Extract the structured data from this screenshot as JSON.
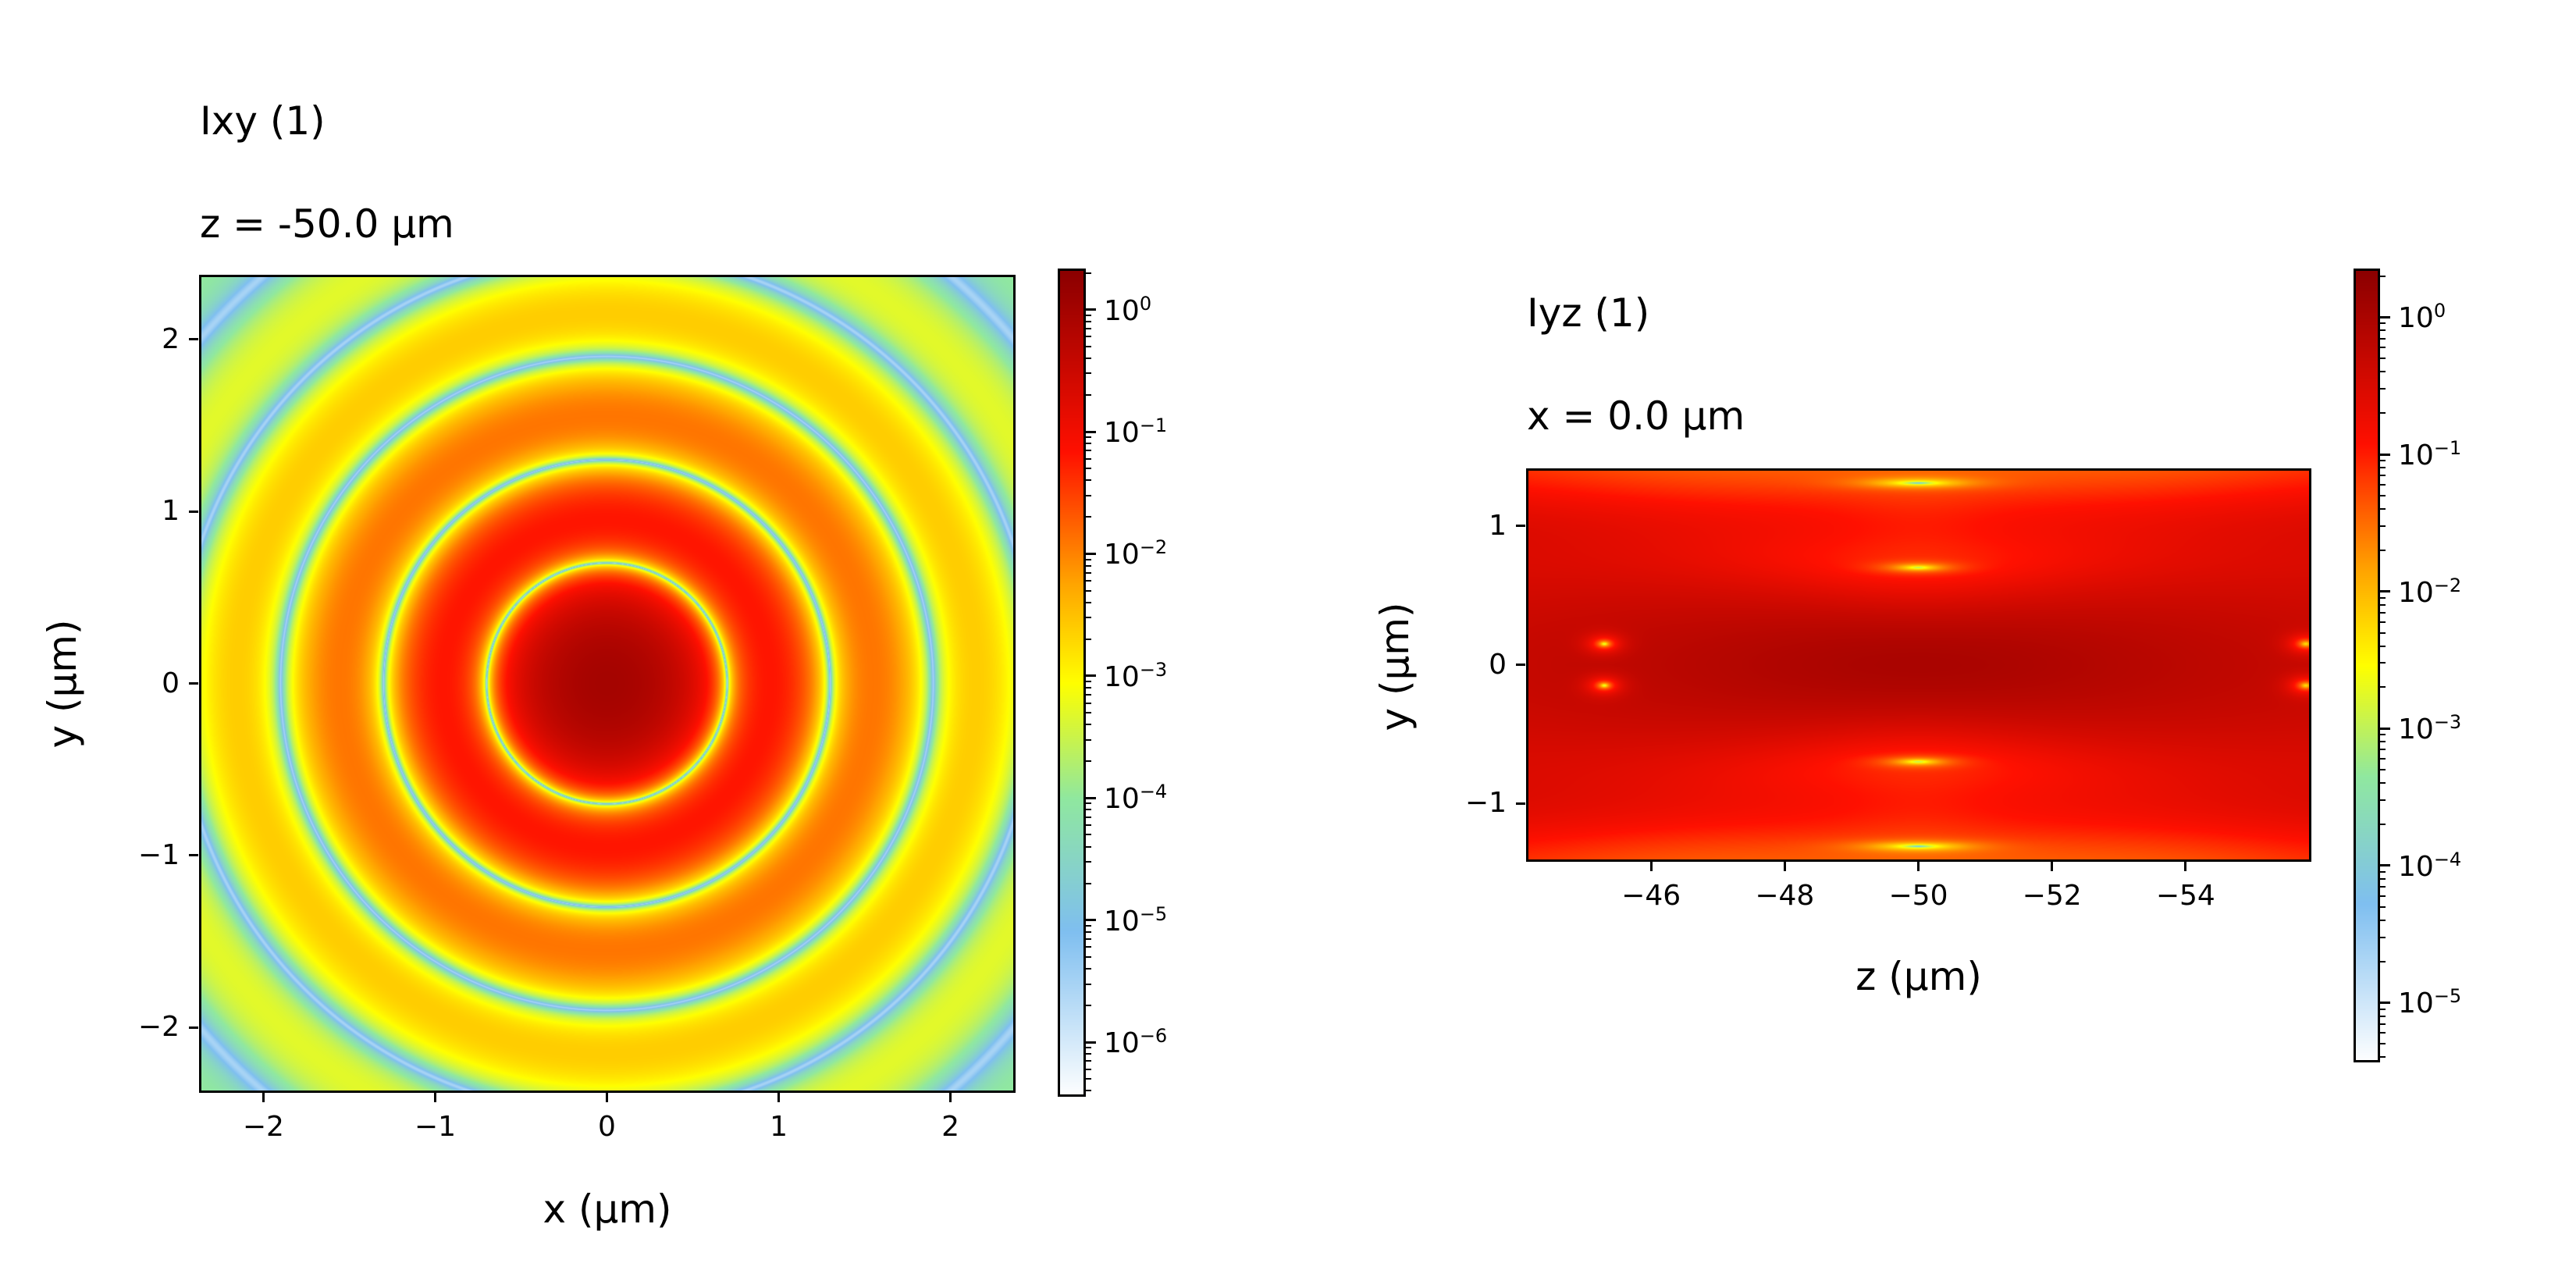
{
  "chart_data": [
    {
      "type": "heatmap",
      "title": "Ixy (1)",
      "subtitle": "z = -50.0 µm",
      "xlabel": "x (µm)",
      "ylabel": "y (µm)",
      "xlim": [
        -2.37,
        2.37
      ],
      "ylim": [
        -2.37,
        2.37
      ],
      "xticks": [
        -2,
        -1,
        0,
        1,
        2
      ],
      "xtick_labels": [
        "−2",
        "−1",
        "0",
        "1",
        "2"
      ],
      "yticks": [
        -2,
        -1,
        0,
        1,
        2
      ],
      "ytick_labels": [
        "−2",
        "−1",
        "0",
        "1",
        "2"
      ],
      "field": "radial rings, zeros at r = 0.7, 1.3, 1.9, 2.5 µm, peak intensity 1 at center",
      "colorbar": {
        "scale": "log",
        "range_exp": [
          -6.44,
          0.33
        ],
        "tick_exps": [
          0,
          -1,
          -2,
          -3,
          -4,
          -5,
          -6
        ],
        "tick_base": "10",
        "tick_exp_labels": [
          "0",
          "−1",
          "−2",
          "−3",
          "−4",
          "−5",
          "−6"
        ]
      }
    },
    {
      "type": "heatmap",
      "title": "Iyz (1)",
      "subtitle": "x = 0.0 µm",
      "xlabel": "z (µm)",
      "ylabel": "y (µm)",
      "xlim": [
        -44.14,
        -55.86
      ],
      "ylim": [
        -1.41,
        1.41
      ],
      "xticks": [
        -46,
        -48,
        -50,
        -52,
        -54
      ],
      "xtick_labels": [
        "−46",
        "−48",
        "−50",
        "−52",
        "−54"
      ],
      "yticks": [
        -1,
        0,
        1
      ],
      "ytick_labels": [
        "−1",
        "0",
        "1"
      ],
      "field": "focal spot centered at z = -50 µm, y = 0; zeros at y = ±0.7, ±1.3 near z = -50 and at z ≈ -45.3, y = ±0.15",
      "colorbar": {
        "scale": "log",
        "range_exp": [
          -5.43,
          0.35
        ],
        "tick_exps": [
          0,
          -1,
          -2,
          -3,
          -4,
          -5
        ],
        "tick_base": "10",
        "tick_exp_labels": [
          "0",
          "−1",
          "−2",
          "−3",
          "−4",
          "−5"
        ]
      }
    }
  ],
  "colormap": [
    "#ffffff",
    "#7fbff0",
    "#90e8a0",
    "#ffff00",
    "#ffa500",
    "#ff1000",
    "#8b0000"
  ]
}
